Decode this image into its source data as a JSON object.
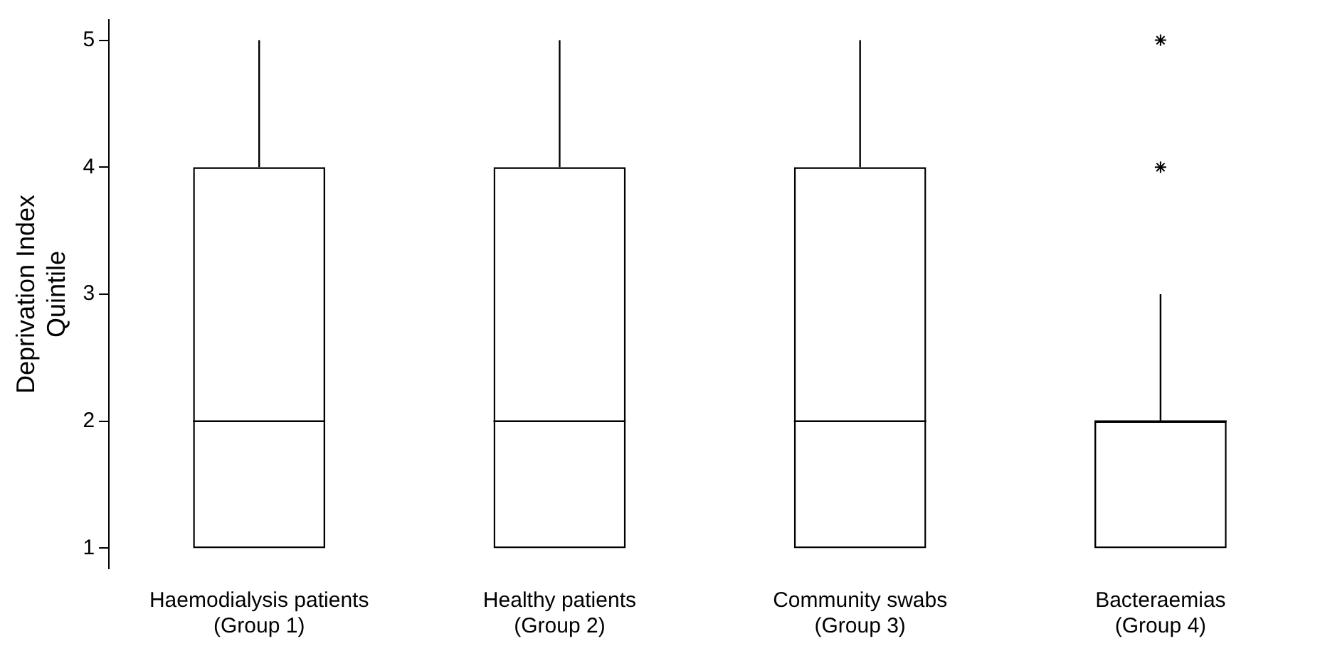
{
  "chart_data": {
    "type": "box",
    "ylabel": "Deprivation Index\nQuintile",
    "categories": [
      "Haemodialysis patients\n(Group 1)",
      "Healthy patients\n(Group 2)",
      "Community swabs\n(Group 3)",
      "Bacteraemias\n(Group 4)"
    ],
    "boxes": [
      {
        "low": 1,
        "q1": 1,
        "median": 2,
        "q3": 4,
        "high": 5
      },
      {
        "low": 1,
        "q1": 1,
        "median": 2,
        "q3": 4,
        "high": 5
      },
      {
        "low": 1,
        "q1": 1,
        "median": 2,
        "q3": 4,
        "high": 5
      },
      {
        "low": 1,
        "q1": 1,
        "median": 2,
        "q3": 2,
        "high": 3,
        "outliers": [
          4,
          5
        ]
      }
    ],
    "ylim": [
      0.84,
      5.16
    ],
    "yticks": [
      1,
      2,
      3,
      4,
      5
    ],
    "grid": false,
    "legend": false,
    "marker": "cross"
  }
}
